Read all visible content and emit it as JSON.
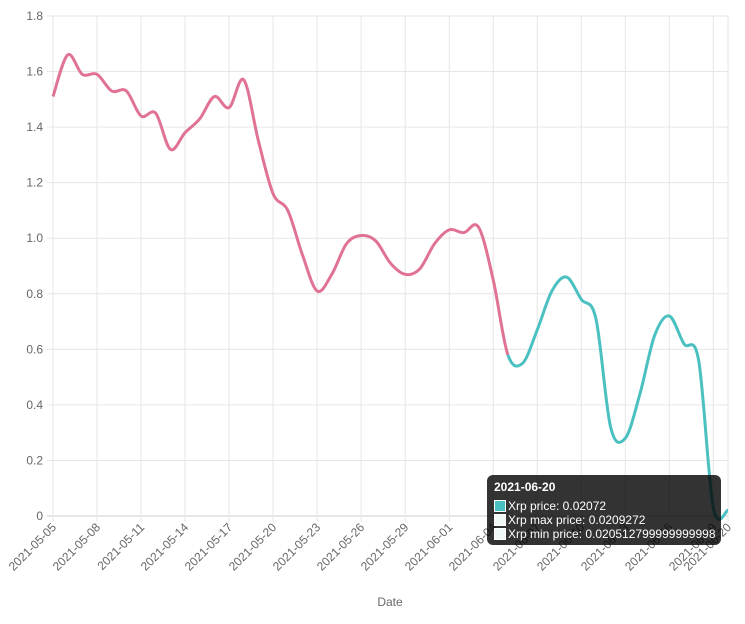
{
  "chart_data": {
    "type": "line",
    "title": "",
    "xlabel": "Date",
    "ylabel": "",
    "ylim": [
      0,
      1.8
    ],
    "yticks": [
      "0",
      "0.2",
      "0.4",
      "0.6",
      "0.8",
      "1.0",
      "1.2",
      "1.4",
      "1.6",
      "1.8"
    ],
    "xticks": [
      "2021-05-05",
      "2021-05-08",
      "2021-05-11",
      "2021-05-14",
      "2021-05-17",
      "2021-05-20",
      "2021-05-23",
      "2021-05-26",
      "2021-05-29",
      "2021-06-01",
      "2021-06-04",
      "2021-06-07",
      "2021-06-10",
      "2021-06-13",
      "2021-06-16",
      "2021-06-19",
      "2021-06-20"
    ],
    "grid": true,
    "legend": "none",
    "x": [
      "2021-05-05",
      "2021-05-06",
      "2021-05-07",
      "2021-05-08",
      "2021-05-09",
      "2021-05-10",
      "2021-05-11",
      "2021-05-12",
      "2021-05-13",
      "2021-05-14",
      "2021-05-15",
      "2021-05-16",
      "2021-05-17",
      "2021-05-18",
      "2021-05-19",
      "2021-05-20",
      "2021-05-21",
      "2021-05-22",
      "2021-05-23",
      "2021-05-24",
      "2021-05-25",
      "2021-05-26",
      "2021-05-27",
      "2021-05-28",
      "2021-05-29",
      "2021-05-30",
      "2021-05-31",
      "2021-06-01",
      "2021-06-02",
      "2021-06-03",
      "2021-06-04",
      "2021-06-05",
      "2021-06-06",
      "2021-06-07",
      "2021-06-08",
      "2021-06-09",
      "2021-06-10",
      "2021-06-11",
      "2021-06-12",
      "2021-06-13",
      "2021-06-14",
      "2021-06-15",
      "2021-06-16",
      "2021-06-17",
      "2021-06-18",
      "2021-06-19",
      "2021-06-20"
    ],
    "series": [
      {
        "name": "Xrp price",
        "values": [
          1.51,
          1.66,
          1.59,
          1.59,
          1.53,
          1.53,
          1.44,
          1.45,
          1.32,
          1.38,
          1.43,
          1.51,
          1.47,
          1.57,
          1.35,
          1.16,
          1.1,
          0.94,
          0.81,
          0.87,
          0.98,
          1.01,
          0.99,
          0.91,
          0.87,
          0.89,
          0.98,
          1.03,
          1.02,
          1.04,
          0.85,
          0.58,
          0.55,
          0.67,
          0.81,
          0.86,
          0.78,
          0.71,
          0.32,
          0.28,
          0.44,
          0.65,
          0.72,
          0.62,
          0.56,
          0.03,
          0.02072
        ],
        "color_before": "#e07393",
        "color_after": "#4bc0c0",
        "color_split_index": 31
      }
    ],
    "tooltip": {
      "title": "2021-06-20",
      "rows": [
        {
          "label": "Xrp price: 0.02072",
          "swatch": "#4bc0c0"
        },
        {
          "label": "Xrp max price: 0.0209272",
          "swatch": "#f0f8f8"
        },
        {
          "label": "Xrp min price: 0.020512799999999998",
          "swatch": "#f0f8f8"
        }
      ]
    }
  }
}
